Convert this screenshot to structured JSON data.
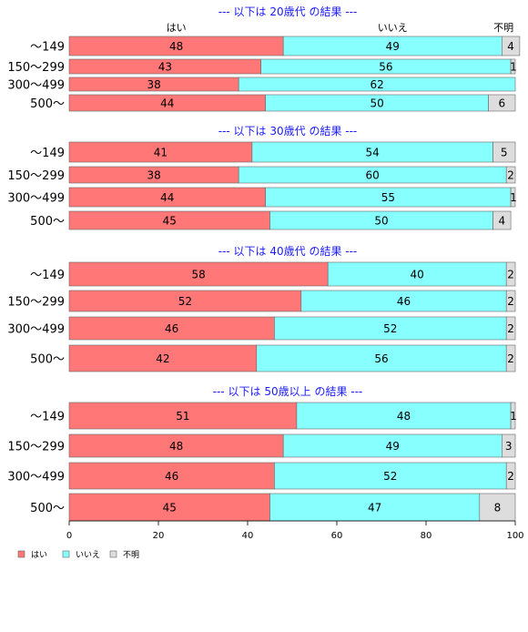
{
  "chart_data": {
    "type": "bar",
    "orientation": "horizontal",
    "stacked": true,
    "segment_labels": [
      "はい",
      "いいえ",
      "不明"
    ],
    "colors": {
      "はい": "#ff7777",
      "いいえ": "#88ffff",
      "不明": "#dddddd"
    },
    "xlim": [
      0,
      100
    ],
    "x_ticks": [
      0,
      20,
      40,
      60,
      80,
      100
    ],
    "categories": [
      "〜149",
      "150〜299",
      "300〜499",
      "500〜"
    ],
    "legend": {
      "placement": "bottom-left",
      "entries": [
        "はい",
        "いいえ",
        "不明"
      ]
    },
    "groups": [
      {
        "title": "--- 以下は 20歳代 の結果 ---",
        "rows": [
          {
            "category": "〜149",
            "values": [
              48,
              49,
              4
            ]
          },
          {
            "category": "150〜299",
            "values": [
              43,
              56,
              1
            ]
          },
          {
            "category": "300〜499",
            "values": [
              38,
              62,
              0
            ]
          },
          {
            "category": "500〜",
            "values": [
              44,
              50,
              6
            ]
          }
        ]
      },
      {
        "title": "--- 以下は 30歳代 の結果 ---",
        "rows": [
          {
            "category": "〜149",
            "values": [
              41,
              54,
              5
            ]
          },
          {
            "category": "150〜299",
            "values": [
              38,
              60,
              2
            ]
          },
          {
            "category": "300〜499",
            "values": [
              44,
              55,
              1
            ]
          },
          {
            "category": "500〜",
            "values": [
              45,
              50,
              4
            ]
          }
        ]
      },
      {
        "title": "--- 以下は 40歳代 の結果 ---",
        "rows": [
          {
            "category": "〜149",
            "values": [
              58,
              40,
              2
            ]
          },
          {
            "category": "150〜299",
            "values": [
              52,
              46,
              2
            ]
          },
          {
            "category": "300〜499",
            "values": [
              46,
              52,
              2
            ]
          },
          {
            "category": "500〜",
            "values": [
              42,
              56,
              2
            ]
          }
        ]
      },
      {
        "title": "--- 以下は 50歳以上 の結果 ---",
        "rows": [
          {
            "category": "〜149",
            "values": [
              51,
              48,
              1
            ]
          },
          {
            "category": "150〜299",
            "values": [
              48,
              49,
              3
            ]
          },
          {
            "category": "300〜499",
            "values": [
              46,
              52,
              2
            ]
          },
          {
            "category": "500〜",
            "values": [
              45,
              47,
              8
            ]
          }
        ]
      }
    ]
  }
}
